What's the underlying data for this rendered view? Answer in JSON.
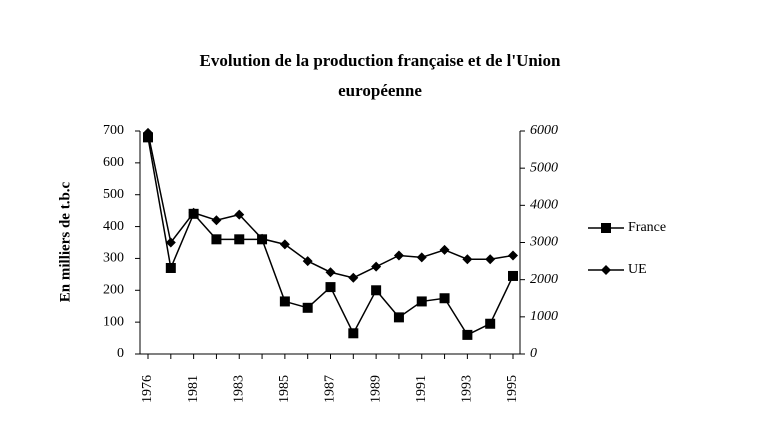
{
  "chart_data": {
    "type": "line",
    "title_lines": [
      "Evolution de la production française et de l'Union",
      "européenne"
    ],
    "y_label": "En milliers de t.b.c",
    "categories": [
      "1976",
      null,
      "1981",
      null,
      "1983",
      null,
      "1985",
      null,
      "1987",
      null,
      "1989",
      null,
      "1991",
      null,
      "1993",
      null,
      "1995"
    ],
    "series": [
      {
        "name": "France",
        "color": "#000000",
        "marker": "square",
        "values": [
          680,
          270,
          440,
          360,
          360,
          360,
          165,
          145,
          210,
          65,
          200,
          115,
          165,
          175,
          60,
          95,
          245
        ]
      },
      {
        "name": "UE",
        "color": "#000000",
        "marker": "diamond",
        "axis": "y2",
        "values": [
          5950,
          3000,
          3800,
          3600,
          3750,
          3100,
          2950,
          2500,
          2200,
          2050,
          2350,
          2650,
          2600,
          2800,
          2550,
          2550,
          2650
        ]
      }
    ],
    "ylim": [
      0,
      700
    ],
    "yticks": [
      0,
      100,
      200,
      300,
      400,
      500,
      600,
      700
    ],
    "y2lim": [
      0,
      6000
    ],
    "y2ticks": [
      0,
      1000,
      2000,
      3000,
      4000,
      5000,
      6000
    ],
    "legend": "right"
  }
}
